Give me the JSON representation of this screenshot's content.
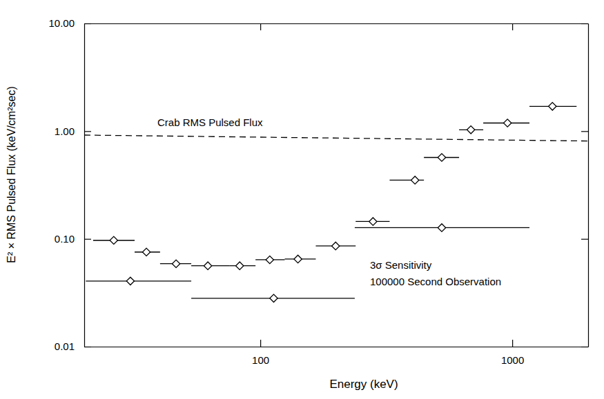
{
  "chart_data": {
    "type": "scatter",
    "xlabel": "Energy (keV)",
    "ylabel": "E² × RMS Pulsed Flux (keV/cm²sec)",
    "log": true,
    "grid": false,
    "xlim": [
      20,
      2000
    ],
    "ylim": [
      0.01,
      10
    ],
    "xticks": [
      100,
      1000
    ],
    "yticks": [
      0.01,
      {
        "value": 0.1,
        "label": "0.10"
      },
      {
        "value": 1,
        "label": "1.00"
      },
      {
        "value": 10,
        "label": "10.00"
      }
    ],
    "series": [
      {
        "type": "scatter",
        "marker": "diamond",
        "color": "#000000",
        "x": [
          26.2,
          35.3,
          46.3,
          61.9,
          82.8,
          109,
          141,
          199,
          280,
          411,
          525,
          685,
          957,
          1443
        ],
        "x_low": [
          21.7,
          31.7,
          40.0,
          53.2,
          75.3,
          95.7,
          125,
          166,
          239,
          326,
          446,
          615,
          767,
          1170
        ],
        "x_high": [
          31.7,
          40.0,
          53.2,
          75.3,
          95.7,
          125,
          166,
          239,
          326,
          446,
          615,
          767,
          1170,
          1800
        ],
        "values": [
          0.097,
          0.0755,
          0.0588,
          0.0563,
          0.0563,
          0.064,
          0.065,
          0.086,
          0.145,
          0.351,
          0.57,
          1.03,
          1.19,
          1.7
        ]
      },
      {
        "type": "scatter",
        "marker": "diamond",
        "color": "#000000",
        "x": [
          30.5,
          113,
          525
        ],
        "x_low": [
          20.3,
          53.2,
          237
        ],
        "x_high": [
          53.2,
          237,
          1170
        ],
        "values": [
          0.0406,
          0.0281,
          0.127
        ]
      },
      {
        "type": "line",
        "line_style": "dashed",
        "color": "#000000",
        "name": "Crab RMS Pulsed Flux",
        "x": [
          20,
          2000
        ],
        "values": [
          0.92,
          0.81
        ]
      }
    ],
    "annotations": [
      "3σ Sensitivity",
      "100000 Second Observation"
    ]
  }
}
